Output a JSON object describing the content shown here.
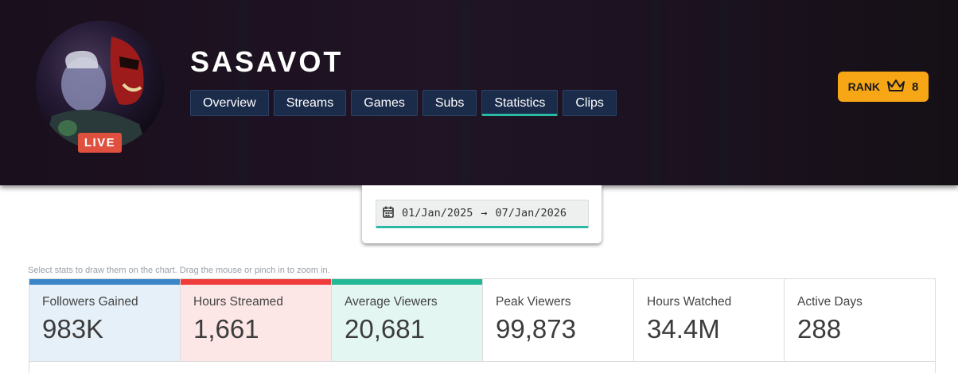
{
  "channel": {
    "name": "SASAVOT",
    "live_label": "LIVE"
  },
  "tabs": [
    {
      "label": "Overview"
    },
    {
      "label": "Streams"
    },
    {
      "label": "Games"
    },
    {
      "label": "Subs"
    },
    {
      "label": "Statistics",
      "active": true
    },
    {
      "label": "Clips"
    }
  ],
  "rank": {
    "label": "RANK",
    "value": "8",
    "icon": "crown-icon"
  },
  "date_range": {
    "start": "01/Jan/2025",
    "arrow": "→",
    "end": "07/Jan/2026",
    "icon": "calendar-icon"
  },
  "hint": "Select stats to draw them on the chart. Drag the mouse or pinch in to zoom in.",
  "stats": [
    {
      "label": "Followers Gained",
      "value": "983K",
      "selected": true,
      "color": "#3a86c8",
      "bg": "#e6f0f8"
    },
    {
      "label": "Hours Streamed",
      "value": "1,661",
      "selected": true,
      "color": "#ef3b3b",
      "bg": "#fde6e6"
    },
    {
      "label": "Average Viewers",
      "value": "20,681",
      "selected": true,
      "color": "#22b996",
      "bg": "#e3f6f1"
    },
    {
      "label": "Peak Viewers",
      "value": "99,873",
      "selected": false
    },
    {
      "label": "Hours Watched",
      "value": "34.4M",
      "selected": false
    },
    {
      "label": "Active Days",
      "value": "288",
      "selected": false
    }
  ],
  "colors": {
    "accent": "#2bb9a6",
    "rank": "#f7a715",
    "live": "#e0503f",
    "tab_bg": "#1b2b4a"
  }
}
